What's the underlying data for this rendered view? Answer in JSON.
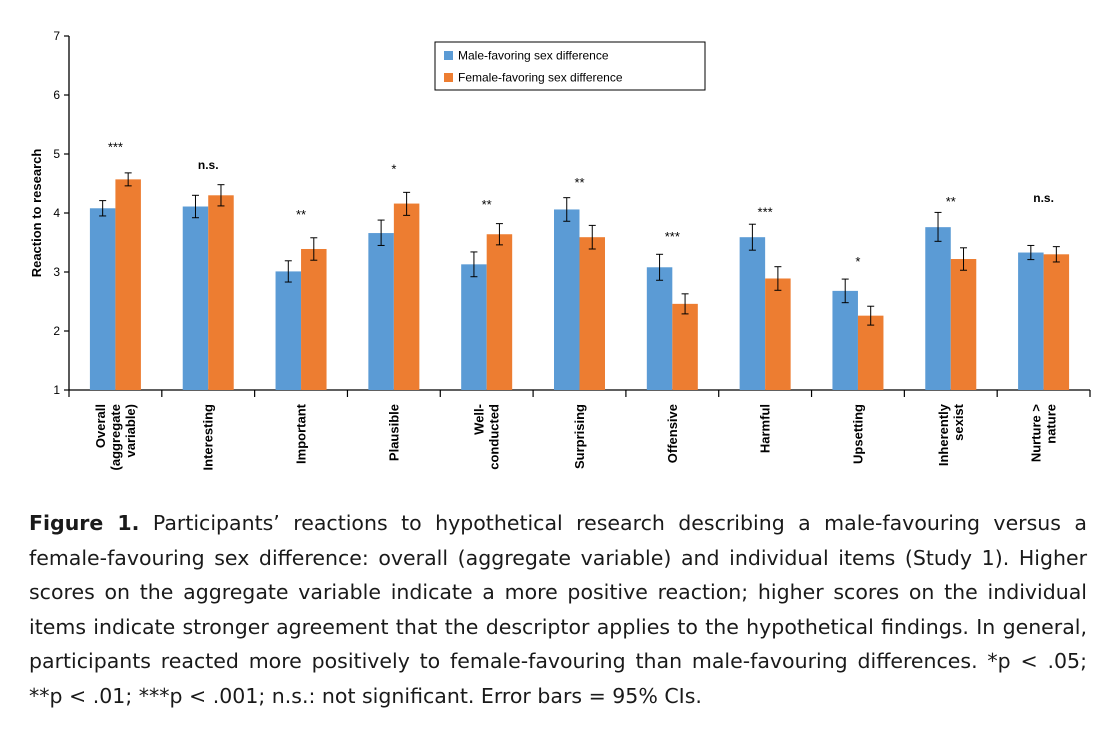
{
  "chart_data": {
    "type": "bar",
    "ylabel": "Reaction to research",
    "ylim": [
      1,
      7
    ],
    "yticks": [
      1,
      2,
      3,
      4,
      5,
      6,
      7
    ],
    "grid": false,
    "legend_position": "top-center",
    "categories": [
      [
        "Overall",
        "(aggregate",
        "variable)"
      ],
      [
        "Interesting"
      ],
      [
        "Important"
      ],
      [
        "Plausible"
      ],
      [
        "Well-",
        "conducted"
      ],
      [
        "Surprising"
      ],
      [
        "Offensive"
      ],
      [
        "Harmful"
      ],
      [
        "Upsetting"
      ],
      [
        "Inherently",
        "sexist"
      ],
      [
        "Nurture >",
        "nature"
      ]
    ],
    "series": [
      {
        "name": "Male-favoring sex difference",
        "color": "#5b9bd5",
        "values": [
          4.08,
          4.11,
          3.01,
          3.66,
          3.13,
          4.06,
          3.08,
          3.59,
          2.68,
          3.76,
          3.33
        ],
        "ci_low": [
          3.95,
          3.92,
          2.83,
          3.45,
          2.92,
          3.86,
          2.86,
          3.37,
          2.48,
          3.52,
          3.21
        ],
        "ci_high": [
          4.21,
          4.3,
          3.19,
          3.88,
          3.34,
          4.26,
          3.3,
          3.81,
          2.88,
          4.01,
          3.45
        ]
      },
      {
        "name": "Female-favoring sex difference",
        "color": "#ed7d31",
        "values": [
          4.57,
          4.3,
          3.39,
          4.16,
          3.64,
          3.59,
          2.46,
          2.89,
          2.26,
          3.22,
          3.3
        ],
        "ci_low": [
          4.46,
          4.12,
          3.2,
          3.96,
          3.46,
          3.39,
          2.29,
          2.69,
          2.1,
          3.03,
          3.17
        ],
        "ci_high": [
          4.68,
          4.48,
          3.58,
          4.35,
          3.82,
          3.79,
          2.63,
          3.09,
          2.42,
          3.41,
          3.43
        ]
      }
    ],
    "significance": [
      "***",
      "n.s.",
      "**",
      "*",
      "**",
      "**",
      "***",
      "***",
      "*",
      "**",
      "n.s."
    ],
    "significance_y": [
      5.14,
      4.75,
      4.0,
      4.77,
      4.17,
      4.54,
      3.63,
      4.04,
      3.2,
      4.22,
      4.19
    ]
  },
  "caption": {
    "label": "Figure 1.",
    "text": "Participants’ reactions to hypothetical research describing a male-favouring versus a female-favouring sex difference: overall (aggregate variable) and individual items (Study 1). Higher scores on the aggregate variable indicate a more positive reaction; higher scores on the individual items indicate stronger agreement that the descriptor applies to the hypothetical findings. In general, participants reacted more positively to female-favouring than male-favouring differences. *p < .05; **p < .01; ***p < .001; n.s.: not significant. Error bars = 95% CIs."
  }
}
